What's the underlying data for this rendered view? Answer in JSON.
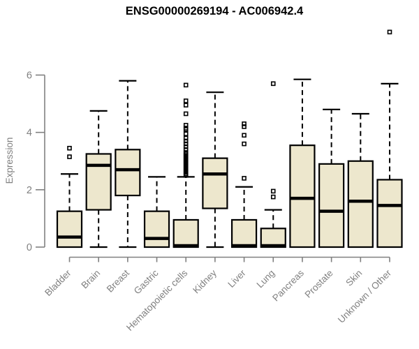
{
  "chart_data": {
    "type": "boxplot",
    "title": "ENSG00000269194 - AC006942.4",
    "ylabel": "Expression",
    "yticks": [
      0,
      2,
      4,
      6
    ],
    "ylim": [
      0,
      6
    ],
    "grid": false,
    "legend": "none",
    "box_fill_color": "#EDE7CD",
    "box_stroke_color": "#000000",
    "axis_color": "#808080",
    "categories": [
      "Bladder",
      "Brain",
      "Breast",
      "Gastric",
      "Hematopoietic cells",
      "Kidney",
      "Liver",
      "Lung",
      "Pancreas",
      "Prostate",
      "Skin",
      "Unknown / Other"
    ],
    "series": [
      {
        "name": "Bladder",
        "low": 0,
        "q1": 0,
        "median": 0.35,
        "q3": 1.25,
        "high": 2.55,
        "outliers": [
          3.15,
          3.45
        ]
      },
      {
        "name": "Brain",
        "low": 0,
        "q1": 1.3,
        "median": 2.85,
        "q3": 3.25,
        "high": 4.75,
        "outliers": []
      },
      {
        "name": "Breast",
        "low": 0,
        "q1": 1.8,
        "median": 2.7,
        "q3": 3.4,
        "high": 5.8,
        "outliers": []
      },
      {
        "name": "Gastric",
        "low": 0,
        "q1": 0,
        "median": 0.3,
        "q3": 1.25,
        "high": 2.45,
        "outliers": []
      },
      {
        "name": "Hematopoietic cells",
        "low": 0,
        "q1": 0,
        "median": 0.05,
        "q3": 0.95,
        "high": 2.45,
        "outliers": [
          2.5,
          2.55,
          2.6,
          2.65,
          2.7,
          2.75,
          2.8,
          2.85,
          2.9,
          2.95,
          3.0,
          3.05,
          3.1,
          3.15,
          3.2,
          3.25,
          3.3,
          3.4,
          3.5,
          3.6,
          3.7,
          3.8,
          3.95,
          4.1,
          4.15,
          4.25,
          4.65,
          4.95,
          5.1,
          5.65
        ]
      },
      {
        "name": "Kidney",
        "low": 0,
        "q1": 1.35,
        "median": 2.55,
        "q3": 3.1,
        "high": 5.4,
        "outliers": []
      },
      {
        "name": "Liver",
        "low": 0,
        "q1": 0,
        "median": 0.05,
        "q3": 0.95,
        "high": 2.1,
        "outliers": [
          2.4,
          3.6,
          3.9,
          4.2,
          4.3
        ]
      },
      {
        "name": "Lung",
        "low": 0,
        "q1": 0,
        "median": 0.05,
        "q3": 0.65,
        "high": 1.3,
        "outliers": [
          1.75,
          1.95,
          5.7
        ]
      },
      {
        "name": "Pancreas",
        "low": 0,
        "q1": 0,
        "median": 1.7,
        "q3": 3.55,
        "high": 5.85,
        "outliers": []
      },
      {
        "name": "Prostate",
        "low": 0,
        "q1": 0,
        "median": 1.25,
        "q3": 2.9,
        "high": 4.8,
        "outliers": []
      },
      {
        "name": "Skin",
        "low": 0,
        "q1": 0,
        "median": 1.6,
        "q3": 3.0,
        "high": 4.65,
        "outliers": []
      },
      {
        "name": "Unknown / Other",
        "low": 0,
        "q1": 0,
        "median": 1.45,
        "q3": 2.35,
        "high": 5.7,
        "outliers": [
          7.5
        ]
      }
    ]
  }
}
